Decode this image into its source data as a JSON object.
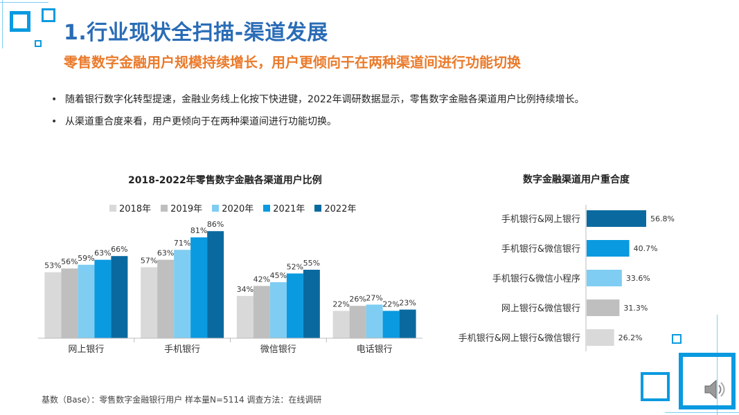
{
  "header": {
    "title": "1.行业现状全扫描-渠道发展",
    "subtitle": "零售数字金融用户规模持续增长，用户更倾向于在两种渠道间进行功能切换"
  },
  "bullets": [
    "随着银行数字化转型提速，金融业务线上化按下快进键，2022年调研数据显示，零售数字金融各渠道用户比例持续增长。",
    "从渠道重合度来看，用户更倾向于在两种渠道间进行功能切换。"
  ],
  "footnote": "基数（Base）：零售数字金融银行用户  样本量N=5114  调查方法：在线调研",
  "colors": {
    "title": "#2a6cb6",
    "subtitle": "#ea7a2b",
    "series": [
      "#d9d9d9",
      "#bfbfbf",
      "#7fcdf2",
      "#0a9ae0",
      "#0a6aa0"
    ],
    "bars2": [
      "#0a6aa0",
      "#0a9ae0",
      "#7fcdf2",
      "#bfbfbf",
      "#d9d9d9"
    ],
    "deco": "#0a9ae0"
  },
  "chart_data": [
    {
      "type": "bar",
      "title": "2018-2022年零售数字金融各渠道用户比例",
      "categories": [
        "网上银行",
        "手机银行",
        "微信银行",
        "电话银行"
      ],
      "series": [
        {
          "name": "2018年",
          "values": [
            53,
            57,
            34,
            22
          ]
        },
        {
          "name": "2019年",
          "values": [
            56,
            63,
            42,
            26
          ]
        },
        {
          "name": "2020年",
          "values": [
            59,
            71,
            45,
            27
          ]
        },
        {
          "name": "2021年",
          "values": [
            63,
            81,
            52,
            22
          ]
        },
        {
          "name": "2022年",
          "values": [
            66,
            86,
            55,
            23
          ]
        }
      ],
      "value_suffix": "%",
      "ylim": [
        0,
        100
      ],
      "legend": "top",
      "grid": false
    },
    {
      "type": "bar",
      "orientation": "horizontal",
      "title": "数字金融渠道用户重合度",
      "categories": [
        "手机银行&网上银行",
        "手机银行&微信银行",
        "手机银行&微信小程序",
        "网上银行&微信银行",
        "手机银行&网上银行&微信银行"
      ],
      "values": [
        56.8,
        40.7,
        33.6,
        31.3,
        26.2
      ],
      "value_suffix": "%",
      "xlim": [
        0,
        70
      ],
      "grid": false
    }
  ]
}
